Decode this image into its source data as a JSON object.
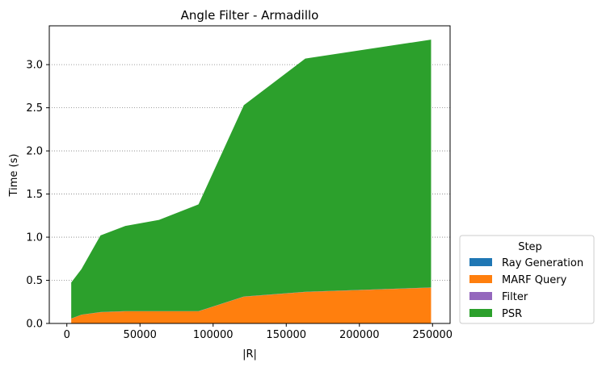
{
  "chart_data": {
    "type": "area",
    "stacked": true,
    "title": "Angle Filter - Armadillo",
    "xlabel": "|R|",
    "ylabel": "Time (s)",
    "xlim": [
      -12000,
      262000
    ],
    "ylim": [
      0,
      3.45
    ],
    "xticks": [
      0,
      50000,
      100000,
      150000,
      200000,
      250000
    ],
    "yticks": [
      0.0,
      0.5,
      1.0,
      1.5,
      2.0,
      2.5,
      3.0
    ],
    "grid": "y-dotted",
    "legend_title": "Step",
    "legend_position": "outside-lower-right",
    "x": [
      3000,
      10000,
      23000,
      40000,
      63000,
      90000,
      121000,
      163000,
      249000
    ],
    "series": [
      {
        "name": "Ray Generation",
        "color": "#1f77b4",
        "values": [
          0.005,
          0.005,
          0.005,
          0.005,
          0.005,
          0.005,
          0.005,
          0.005,
          0.005
        ]
      },
      {
        "name": "MARF Query",
        "color": "#ff7f0e",
        "values": [
          0.05,
          0.095,
          0.125,
          0.135,
          0.135,
          0.135,
          0.305,
          0.36,
          0.41
        ]
      },
      {
        "name": "Filter",
        "color": "#9467bd",
        "values": [
          0.002,
          0.002,
          0.002,
          0.002,
          0.002,
          0.002,
          0.002,
          0.002,
          0.002
        ]
      },
      {
        "name": "PSR",
        "color": "#2ca02c",
        "values": [
          0.418,
          0.528,
          0.888,
          0.988,
          1.058,
          1.238,
          2.218,
          2.703,
          2.873
        ]
      }
    ]
  }
}
